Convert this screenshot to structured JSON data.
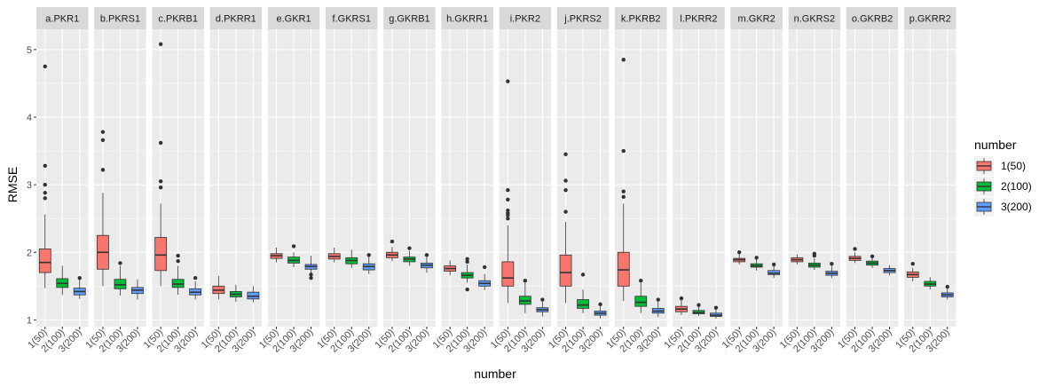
{
  "chart_data": {
    "type": "boxplot",
    "xlabel": "number",
    "ylabel": "RMSE",
    "ylim": [
      0.9,
      5.3
    ],
    "yticks": [
      1,
      2,
      3,
      4,
      5
    ],
    "categories": [
      "1(50)",
      "2(100)",
      "3(200)"
    ],
    "legend": {
      "title": "number",
      "position": "right",
      "entries": [
        "1(50)",
        "2(100)",
        "3(200)"
      ]
    },
    "colors": {
      "1(50)": "#F8766D",
      "2(100)": "#00BA38",
      "3(200)": "#619CFF"
    },
    "grid": true,
    "facets": [
      {
        "name": "a.PKR1",
        "boxes": [
          {
            "group": "1(50)",
            "whisker_low": 1.47,
            "q1": 1.7,
            "median": 1.85,
            "q3": 2.05,
            "whisker_high": 2.56,
            "outliers": [
              2.8,
              2.88,
              3.0,
              3.28,
              4.75
            ]
          },
          {
            "group": "2(100)",
            "whisker_low": 1.37,
            "q1": 1.48,
            "median": 1.54,
            "q3": 1.61,
            "whisker_high": 1.8,
            "outliers": []
          },
          {
            "group": "3(200)",
            "whisker_low": 1.31,
            "q1": 1.37,
            "median": 1.42,
            "q3": 1.47,
            "whisker_high": 1.6,
            "outliers": [
              1.62
            ]
          }
        ]
      },
      {
        "name": "b.PKRS1",
        "boxes": [
          {
            "group": "1(50)",
            "whisker_low": 1.5,
            "q1": 1.75,
            "median": 2.0,
            "q3": 2.25,
            "whisker_high": 2.88,
            "outliers": [
              3.22,
              3.66,
              3.78
            ]
          },
          {
            "group": "2(100)",
            "whisker_low": 1.36,
            "q1": 1.46,
            "median": 1.52,
            "q3": 1.6,
            "whisker_high": 1.8,
            "outliers": [
              1.84
            ]
          },
          {
            "group": "3(200)",
            "whisker_low": 1.3,
            "q1": 1.39,
            "median": 1.44,
            "q3": 1.48,
            "whisker_high": 1.6,
            "outliers": []
          }
        ]
      },
      {
        "name": "c.PKRB1",
        "boxes": [
          {
            "group": "1(50)",
            "whisker_low": 1.5,
            "q1": 1.73,
            "median": 1.96,
            "q3": 2.22,
            "whisker_high": 2.72,
            "outliers": [
              2.96,
              3.05,
              3.62,
              5.08
            ]
          },
          {
            "group": "2(100)",
            "whisker_low": 1.37,
            "q1": 1.48,
            "median": 1.53,
            "q3": 1.6,
            "whisker_high": 1.8,
            "outliers": [
              1.87,
              1.95
            ]
          },
          {
            "group": "3(200)",
            "whisker_low": 1.3,
            "q1": 1.37,
            "median": 1.41,
            "q3": 1.46,
            "whisker_high": 1.57,
            "outliers": [
              1.62
            ]
          }
        ]
      },
      {
        "name": "d.PKRR1",
        "boxes": [
          {
            "group": "1(50)",
            "whisker_low": 1.3,
            "q1": 1.39,
            "median": 1.44,
            "q3": 1.5,
            "whisker_high": 1.65,
            "outliers": []
          },
          {
            "group": "2(100)",
            "whisker_low": 1.27,
            "q1": 1.34,
            "median": 1.38,
            "q3": 1.42,
            "whisker_high": 1.52,
            "outliers": []
          },
          {
            "group": "3(200)",
            "whisker_low": 1.26,
            "q1": 1.31,
            "median": 1.35,
            "q3": 1.41,
            "whisker_high": 1.5,
            "outliers": []
          }
        ]
      },
      {
        "name": "e.GKR1",
        "boxes": [
          {
            "group": "1(50)",
            "whisker_low": 1.85,
            "q1": 1.91,
            "median": 1.95,
            "q3": 1.98,
            "whisker_high": 2.07,
            "outliers": []
          },
          {
            "group": "2(100)",
            "whisker_low": 1.78,
            "q1": 1.84,
            "median": 1.88,
            "q3": 1.93,
            "whisker_high": 2.0,
            "outliers": [
              2.09
            ]
          },
          {
            "group": "3(200)",
            "whisker_low": 1.68,
            "q1": 1.75,
            "median": 1.79,
            "q3": 1.82,
            "whisker_high": 1.95,
            "outliers": [
              1.62,
              1.67
            ]
          }
        ]
      },
      {
        "name": "f.GKRS1",
        "boxes": [
          {
            "group": "1(50)",
            "whisker_low": 1.85,
            "q1": 1.9,
            "median": 1.94,
            "q3": 1.98,
            "whisker_high": 2.07,
            "outliers": []
          },
          {
            "group": "2(100)",
            "whisker_low": 1.77,
            "q1": 1.83,
            "median": 1.88,
            "q3": 1.92,
            "whisker_high": 2.04,
            "outliers": []
          },
          {
            "group": "3(200)",
            "whisker_low": 1.68,
            "q1": 1.74,
            "median": 1.79,
            "q3": 1.83,
            "whisker_high": 1.93,
            "outliers": [
              1.96
            ]
          }
        ]
      },
      {
        "name": "g.GKRB1",
        "boxes": [
          {
            "group": "1(50)",
            "whisker_low": 1.87,
            "q1": 1.92,
            "median": 1.96,
            "q3": 2.0,
            "whisker_high": 2.08,
            "outliers": [
              2.16
            ]
          },
          {
            "group": "2(100)",
            "whisker_low": 1.8,
            "q1": 1.86,
            "median": 1.9,
            "q3": 1.93,
            "whisker_high": 2.02,
            "outliers": [
              2.06
            ]
          },
          {
            "group": "3(200)",
            "whisker_low": 1.7,
            "q1": 1.77,
            "median": 1.81,
            "q3": 1.84,
            "whisker_high": 1.93,
            "outliers": [
              1.96
            ]
          }
        ]
      },
      {
        "name": "h.GKRR1",
        "boxes": [
          {
            "group": "1(50)",
            "whisker_low": 1.66,
            "q1": 1.72,
            "median": 1.76,
            "q3": 1.8,
            "whisker_high": 1.88,
            "outliers": []
          },
          {
            "group": "2(100)",
            "whisker_low": 1.55,
            "q1": 1.62,
            "median": 1.66,
            "q3": 1.7,
            "whisker_high": 1.82,
            "outliers": [
              1.45,
              1.86,
              1.9
            ]
          },
          {
            "group": "3(200)",
            "whisker_low": 1.44,
            "q1": 1.5,
            "median": 1.54,
            "q3": 1.58,
            "whisker_high": 1.68,
            "outliers": [
              1.78
            ]
          }
        ]
      },
      {
        "name": "i.PKR2",
        "boxes": [
          {
            "group": "1(50)",
            "whisker_low": 1.25,
            "q1": 1.5,
            "median": 1.62,
            "q3": 1.86,
            "whisker_high": 2.4,
            "outliers": [
              2.5,
              2.55,
              2.58,
              2.62,
              2.78,
              2.92,
              4.53
            ]
          },
          {
            "group": "2(100)",
            "whisker_low": 1.1,
            "q1": 1.23,
            "median": 1.28,
            "q3": 1.35,
            "whisker_high": 1.55,
            "outliers": [
              1.58
            ]
          },
          {
            "group": "3(200)",
            "whisker_low": 1.05,
            "q1": 1.12,
            "median": 1.15,
            "q3": 1.18,
            "whisker_high": 1.27,
            "outliers": [
              1.3
            ]
          }
        ]
      },
      {
        "name": "j.PKRS2",
        "boxes": [
          {
            "group": "1(50)",
            "whisker_low": 1.25,
            "q1": 1.5,
            "median": 1.7,
            "q3": 1.96,
            "whisker_high": 2.45,
            "outliers": [
              2.6,
              2.92,
              3.06,
              3.45
            ]
          },
          {
            "group": "2(100)",
            "whisker_low": 1.1,
            "q1": 1.17,
            "median": 1.22,
            "q3": 1.3,
            "whisker_high": 1.45,
            "outliers": [
              1.67
            ]
          },
          {
            "group": "3(200)",
            "whisker_low": 1.02,
            "q1": 1.07,
            "median": 1.1,
            "q3": 1.13,
            "whisker_high": 1.2,
            "outliers": [
              1.23
            ]
          }
        ]
      },
      {
        "name": "k.PKRB2",
        "boxes": [
          {
            "group": "1(50)",
            "whisker_low": 1.28,
            "q1": 1.5,
            "median": 1.74,
            "q3": 2.0,
            "whisker_high": 2.72,
            "outliers": [
              2.82,
              2.9,
              3.5,
              4.85
            ]
          },
          {
            "group": "2(100)",
            "whisker_low": 1.1,
            "q1": 1.2,
            "median": 1.26,
            "q3": 1.35,
            "whisker_high": 1.55,
            "outliers": [
              1.58
            ]
          },
          {
            "group": "3(200)",
            "whisker_low": 1.04,
            "q1": 1.1,
            "median": 1.13,
            "q3": 1.17,
            "whisker_high": 1.27,
            "outliers": [
              1.3
            ]
          }
        ]
      },
      {
        "name": "l.PKRR2",
        "boxes": [
          {
            "group": "1(50)",
            "whisker_low": 1.07,
            "q1": 1.12,
            "median": 1.16,
            "q3": 1.2,
            "whisker_high": 1.3,
            "outliers": [
              1.32
            ]
          },
          {
            "group": "2(100)",
            "whisker_low": 1.06,
            "q1": 1.09,
            "median": 1.11,
            "q3": 1.14,
            "whisker_high": 1.2,
            "outliers": [
              1.22
            ]
          },
          {
            "group": "3(200)",
            "whisker_low": 1.02,
            "q1": 1.05,
            "median": 1.07,
            "q3": 1.1,
            "whisker_high": 1.16,
            "outliers": [
              1.18
            ]
          }
        ]
      },
      {
        "name": "m.GKR2",
        "boxes": [
          {
            "group": "1(50)",
            "whisker_low": 1.82,
            "q1": 1.86,
            "median": 1.89,
            "q3": 1.91,
            "whisker_high": 1.97,
            "outliers": [
              2.0
            ]
          },
          {
            "group": "2(100)",
            "whisker_low": 1.73,
            "q1": 1.78,
            "median": 1.8,
            "q3": 1.83,
            "whisker_high": 1.9,
            "outliers": [
              1.92
            ]
          },
          {
            "group": "3(200)",
            "whisker_low": 1.62,
            "q1": 1.67,
            "median": 1.69,
            "q3": 1.73,
            "whisker_high": 1.8,
            "outliers": [
              1.82
            ]
          }
        ]
      },
      {
        "name": "n.GKRS2",
        "boxes": [
          {
            "group": "1(50)",
            "whisker_low": 1.82,
            "q1": 1.86,
            "median": 1.89,
            "q3": 1.92,
            "whisker_high": 1.97,
            "outliers": []
          },
          {
            "group": "2(100)",
            "whisker_low": 1.74,
            "q1": 1.78,
            "median": 1.81,
            "q3": 1.84,
            "whisker_high": 1.91,
            "outliers": [
              1.95,
              1.98
            ]
          },
          {
            "group": "3(200)",
            "whisker_low": 1.62,
            "q1": 1.66,
            "median": 1.69,
            "q3": 1.72,
            "whisker_high": 1.8,
            "outliers": [
              1.83
            ]
          }
        ]
      },
      {
        "name": "o.GKRB2",
        "boxes": [
          {
            "group": "1(50)",
            "whisker_low": 1.84,
            "q1": 1.88,
            "median": 1.91,
            "q3": 1.94,
            "whisker_high": 2.0,
            "outliers": [
              2.05
            ]
          },
          {
            "group": "2(100)",
            "whisker_low": 1.77,
            "q1": 1.81,
            "median": 1.84,
            "q3": 1.87,
            "whisker_high": 1.92,
            "outliers": [
              1.94
            ]
          },
          {
            "group": "3(200)",
            "whisker_low": 1.66,
            "q1": 1.7,
            "median": 1.73,
            "q3": 1.76,
            "whisker_high": 1.81,
            "outliers": []
          }
        ]
      },
      {
        "name": "p.GKRR2",
        "boxes": [
          {
            "group": "1(50)",
            "whisker_low": 1.57,
            "q1": 1.63,
            "median": 1.67,
            "q3": 1.71,
            "whisker_high": 1.77,
            "outliers": [
              1.83
            ]
          },
          {
            "group": "2(100)",
            "whisker_low": 1.45,
            "q1": 1.5,
            "median": 1.53,
            "q3": 1.57,
            "whisker_high": 1.63,
            "outliers": []
          },
          {
            "group": "3(200)",
            "whisker_low": 1.3,
            "q1": 1.34,
            "median": 1.37,
            "q3": 1.4,
            "whisker_high": 1.46,
            "outliers": [
              1.49
            ]
          }
        ]
      }
    ]
  }
}
